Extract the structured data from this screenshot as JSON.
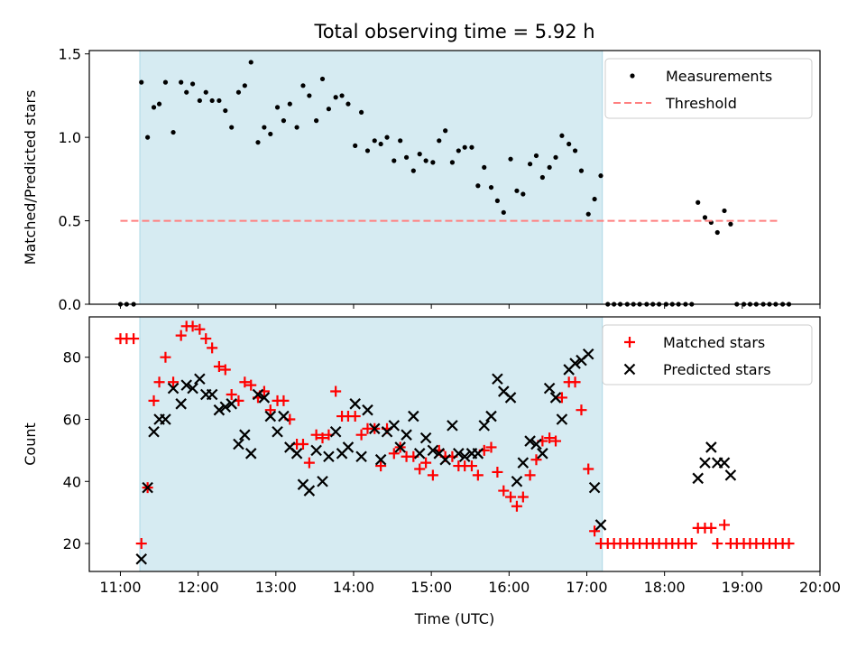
{
  "title": "Total observing time = 5.92 h",
  "chart_data": [
    {
      "type": "scatter",
      "panel": "top",
      "ylabel": "Matched/Predicted stars",
      "ylim": [
        0,
        1.52
      ],
      "yticks": [
        0.0,
        0.5,
        1.0,
        1.5
      ],
      "ytick_labels": [
        "0.0",
        "0.5",
        "1.0",
        "1.5"
      ],
      "xlim": [
        10.6,
        20.0
      ],
      "xticks": [
        11,
        12,
        13,
        14,
        15,
        16,
        17,
        18,
        19,
        20
      ],
      "shaded_span": [
        11.25,
        17.2
      ],
      "legend_position": "top-right",
      "series": [
        {
          "name": "Measurements",
          "marker": "dot",
          "color": "#000000",
          "x": [
            11.0,
            11.08,
            11.17,
            11.27,
            11.35,
            11.43,
            11.5,
            11.58,
            11.68,
            11.78,
            11.85,
            11.93,
            12.02,
            12.1,
            12.18,
            12.27,
            12.35,
            12.43,
            12.52,
            12.6,
            12.68,
            12.77,
            12.85,
            12.93,
            13.02,
            13.1,
            13.18,
            13.27,
            13.35,
            13.43,
            13.52,
            13.6,
            13.68,
            13.77,
            13.85,
            13.93,
            14.02,
            14.1,
            14.18,
            14.27,
            14.35,
            14.43,
            14.52,
            14.6,
            14.68,
            14.77,
            14.85,
            14.93,
            15.02,
            15.1,
            15.18,
            15.27,
            15.35,
            15.43,
            15.52,
            15.6,
            15.68,
            15.77,
            15.85,
            15.93,
            16.02,
            16.1,
            16.18,
            16.27,
            16.35,
            16.43,
            16.52,
            16.6,
            16.68,
            16.77,
            16.85,
            16.93,
            17.02,
            17.1,
            17.18,
            17.27,
            17.35,
            17.43,
            17.52,
            17.6,
            17.68,
            17.77,
            17.85,
            17.93,
            18.02,
            18.1,
            18.18,
            18.27,
            18.35,
            18.43,
            18.52,
            18.6,
            18.68,
            18.77,
            18.85,
            18.93,
            19.02,
            19.1,
            19.18,
            19.27,
            19.35,
            19.43,
            19.52,
            19.6
          ],
          "y": [
            0,
            0,
            0,
            1.33,
            1.0,
            1.18,
            1.2,
            1.33,
            1.03,
            1.33,
            1.27,
            1.32,
            1.22,
            1.27,
            1.22,
            1.22,
            1.16,
            1.06,
            1.27,
            1.31,
            1.45,
            0.97,
            1.06,
            1.02,
            1.18,
            1.1,
            1.2,
            1.06,
            1.31,
            1.25,
            1.1,
            1.35,
            1.17,
            1.24,
            1.25,
            1.2,
            0.95,
            1.15,
            0.92,
            0.98,
            0.96,
            1.0,
            0.86,
            0.98,
            0.88,
            0.8,
            0.9,
            0.86,
            0.85,
            0.98,
            1.04,
            0.85,
            0.92,
            0.94,
            0.94,
            0.71,
            0.82,
            0.7,
            0.62,
            0.55,
            0.87,
            0.68,
            0.66,
            0.84,
            0.89,
            0.76,
            0.82,
            0.88,
            1.01,
            0.96,
            0.92,
            0.8,
            0.54,
            0.63,
            0.77,
            0,
            0,
            0,
            0,
            0,
            0,
            0,
            0,
            0,
            0,
            0,
            0,
            0,
            0,
            0.61,
            0.52,
            0.49,
            0.43,
            0.56,
            0.48,
            0,
            0,
            0,
            0,
            0,
            0,
            0,
            0,
            0
          ]
        },
        {
          "name": "Threshold",
          "marker": "dashed-line",
          "color": "#ff7f7f",
          "x": [
            11.0,
            19.45
          ],
          "y": [
            0.5,
            0.5
          ]
        }
      ]
    },
    {
      "type": "scatter",
      "panel": "bottom",
      "xlabel": "Time (UTC)",
      "ylabel": "Count",
      "ylim": [
        11,
        93
      ],
      "yticks": [
        20,
        40,
        60,
        80
      ],
      "ytick_labels": [
        "20",
        "40",
        "60",
        "80"
      ],
      "xlim": [
        10.6,
        20.0
      ],
      "xticks": [
        11,
        12,
        13,
        14,
        15,
        16,
        17,
        18,
        19,
        20
      ],
      "xtick_labels": [
        "11:00",
        "12:00",
        "13:00",
        "14:00",
        "15:00",
        "16:00",
        "17:00",
        "18:00",
        "19:00",
        "20:00"
      ],
      "shaded_span": [
        11.25,
        17.2
      ],
      "legend_position": "top-right",
      "series": [
        {
          "name": "Matched stars",
          "marker": "plus",
          "color": "#ff0000",
          "x": [
            11.0,
            11.08,
            11.17,
            11.27,
            11.35,
            11.43,
            11.5,
            11.58,
            11.68,
            11.78,
            11.85,
            11.93,
            12.02,
            12.1,
            12.18,
            12.27,
            12.35,
            12.43,
            12.52,
            12.6,
            12.68,
            12.77,
            12.85,
            12.93,
            13.02,
            13.1,
            13.18,
            13.27,
            13.35,
            13.43,
            13.52,
            13.6,
            13.68,
            13.77,
            13.85,
            13.93,
            14.02,
            14.1,
            14.18,
            14.27,
            14.35,
            14.43,
            14.52,
            14.6,
            14.68,
            14.77,
            14.85,
            14.93,
            15.02,
            15.1,
            15.18,
            15.27,
            15.35,
            15.43,
            15.52,
            15.6,
            15.68,
            15.77,
            15.85,
            15.93,
            16.02,
            16.1,
            16.18,
            16.27,
            16.35,
            16.43,
            16.52,
            16.6,
            16.68,
            16.77,
            16.85,
            16.93,
            17.02,
            17.1,
            17.18,
            17.27,
            17.35,
            17.43,
            17.52,
            17.6,
            17.68,
            17.77,
            17.85,
            17.93,
            18.02,
            18.1,
            18.18,
            18.27,
            18.35,
            18.43,
            18.52,
            18.6,
            18.68,
            18.77,
            18.85,
            18.93,
            19.02,
            19.1,
            19.18,
            19.27,
            19.35,
            19.43,
            19.52,
            19.6
          ],
          "y": [
            86,
            86,
            86,
            20,
            38,
            66,
            72,
            80,
            72,
            87,
            90,
            90,
            89,
            86,
            83,
            77,
            76,
            68,
            66,
            72,
            71,
            67,
            69,
            63,
            66,
            66,
            60,
            52,
            52,
            46,
            55,
            54,
            55,
            69,
            61,
            61,
            61,
            55,
            57,
            57,
            45,
            57,
            49,
            51,
            48,
            48,
            44,
            46,
            42,
            50,
            48,
            48,
            45,
            45,
            45,
            42,
            50,
            51,
            43,
            37,
            35,
            32,
            35,
            42,
            47,
            53,
            54,
            53,
            67,
            72,
            72,
            63,
            44,
            24,
            20,
            20,
            20,
            20,
            20,
            20,
            20,
            20,
            20,
            20,
            20,
            20,
            20,
            20,
            20,
            25,
            25,
            25,
            20,
            26,
            20,
            20,
            20,
            20,
            20,
            20,
            20,
            20,
            20,
            20
          ]
        },
        {
          "name": "Predicted stars",
          "marker": "x",
          "color": "#000000",
          "x": [
            11.27,
            11.35,
            11.43,
            11.5,
            11.58,
            11.68,
            11.78,
            11.85,
            11.93,
            12.02,
            12.1,
            12.18,
            12.27,
            12.35,
            12.43,
            12.52,
            12.6,
            12.68,
            12.77,
            12.85,
            12.93,
            13.02,
            13.1,
            13.18,
            13.27,
            13.35,
            13.43,
            13.52,
            13.6,
            13.68,
            13.77,
            13.85,
            13.93,
            14.02,
            14.1,
            14.18,
            14.27,
            14.35,
            14.43,
            14.52,
            14.6,
            14.68,
            14.77,
            14.85,
            14.93,
            15.02,
            15.1,
            15.18,
            15.27,
            15.35,
            15.43,
            15.52,
            15.6,
            15.68,
            15.77,
            15.85,
            15.93,
            16.02,
            16.1,
            16.18,
            16.27,
            16.35,
            16.43,
            16.52,
            16.6,
            16.68,
            16.77,
            16.85,
            16.93,
            17.02,
            17.1,
            17.18,
            18.43,
            18.52,
            18.6,
            18.68,
            18.77,
            18.85
          ],
          "y": [
            15,
            38,
            56,
            60,
            60,
            70,
            65,
            71,
            70,
            73,
            68,
            68,
            63,
            64,
            65,
            52,
            55,
            49,
            68,
            67,
            61,
            56,
            61,
            51,
            49,
            39,
            37,
            50,
            40,
            48,
            56,
            49,
            51,
            65,
            48,
            63,
            57,
            47,
            56,
            58,
            51,
            55,
            61,
            49,
            54,
            50,
            49,
            47,
            58,
            49,
            48,
            49,
            49,
            58,
            61,
            73,
            69,
            67,
            40,
            46,
            53,
            52,
            49,
            70,
            67,
            60,
            76,
            78,
            79,
            81,
            38,
            26,
            41,
            46,
            51,
            46,
            46,
            42
          ]
        }
      ]
    }
  ]
}
